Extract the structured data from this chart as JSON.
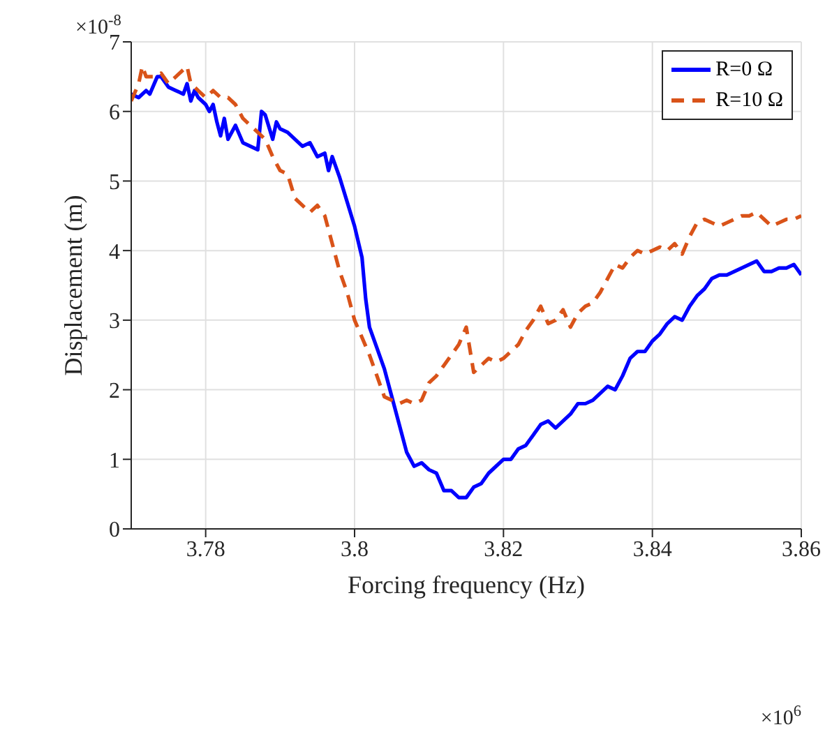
{
  "chart_data": {
    "type": "line",
    "xlabel": "Forcing frequency (Hz)",
    "ylabel": "Displacement (m)",
    "xlim": [
      3.77,
      3.86
    ],
    "xticks": [
      3.78,
      3.8,
      3.82,
      3.84,
      3.86
    ],
    "ylim": [
      0,
      7
    ],
    "yticks": [
      0,
      1,
      2,
      3,
      4,
      5,
      6,
      7
    ],
    "grid": true,
    "legend": "top right",
    "marker": "none",
    "annotations": [
      "×10$^{-8}$",
      "×10$^{6}$"
    ],
    "series": [
      {
        "name": "R=0 Ω",
        "color": "#0000ff",
        "line_style": "solid",
        "x": [
          3.77,
          3.771,
          3.772,
          3.7725,
          3.7735,
          3.774,
          3.775,
          3.776,
          3.777,
          3.7775,
          3.778,
          3.7785,
          3.779,
          3.78,
          3.7805,
          3.781,
          3.7815,
          3.782,
          3.7825,
          3.783,
          3.784,
          3.785,
          3.786,
          3.787,
          3.7875,
          3.788,
          3.789,
          3.7895,
          3.79,
          3.791,
          3.792,
          3.793,
          3.794,
          3.795,
          3.796,
          3.7965,
          3.797,
          3.798,
          3.799,
          3.8,
          3.801,
          3.8015,
          3.802,
          3.803,
          3.804,
          3.805,
          3.806,
          3.807,
          3.808,
          3.809,
          3.81,
          3.811,
          3.812,
          3.813,
          3.814,
          3.815,
          3.816,
          3.817,
          3.818,
          3.819,
          3.82,
          3.821,
          3.822,
          3.823,
          3.824,
          3.825,
          3.826,
          3.827,
          3.828,
          3.829,
          3.83,
          3.831,
          3.832,
          3.833,
          3.834,
          3.835,
          3.836,
          3.837,
          3.838,
          3.839,
          3.84,
          3.841,
          3.842,
          3.843,
          3.844,
          3.845,
          3.846,
          3.847,
          3.848,
          3.849,
          3.85,
          3.851,
          3.852,
          3.853,
          3.854,
          3.855,
          3.856,
          3.857,
          3.858,
          3.859,
          3.86
        ],
        "values": [
          6.25,
          6.2,
          6.3,
          6.25,
          6.5,
          6.5,
          6.35,
          6.3,
          6.25,
          6.4,
          6.15,
          6.3,
          6.2,
          6.1,
          6.0,
          6.1,
          5.85,
          5.65,
          5.9,
          5.6,
          5.8,
          5.55,
          5.5,
          5.45,
          6.0,
          5.95,
          5.6,
          5.85,
          5.75,
          5.7,
          5.6,
          5.5,
          5.55,
          5.35,
          5.4,
          5.15,
          5.35,
          5.05,
          4.7,
          4.35,
          3.9,
          3.3,
          2.9,
          2.6,
          2.3,
          1.9,
          1.5,
          1.1,
          0.9,
          0.95,
          0.85,
          0.8,
          0.55,
          0.55,
          0.45,
          0.45,
          0.6,
          0.65,
          0.8,
          0.9,
          1.0,
          1.0,
          1.15,
          1.2,
          1.35,
          1.5,
          1.55,
          1.45,
          1.55,
          1.65,
          1.8,
          1.8,
          1.85,
          1.95,
          2.05,
          2.0,
          2.2,
          2.45,
          2.55,
          2.55,
          2.7,
          2.8,
          2.95,
          3.05,
          3.0,
          3.2,
          3.35,
          3.45,
          3.6,
          3.65,
          3.65,
          3.7,
          3.75,
          3.8,
          3.85,
          3.7,
          3.7,
          3.75,
          3.75,
          3.8,
          3.65
        ]
      },
      {
        "name": "R=10 Ω",
        "color": "#d95319",
        "line_style": "dashed",
        "x": [
          3.77,
          3.771,
          3.7715,
          3.772,
          3.773,
          3.774,
          3.775,
          3.776,
          3.777,
          3.7775,
          3.778,
          3.779,
          3.78,
          3.781,
          3.782,
          3.783,
          3.784,
          3.785,
          3.786,
          3.787,
          3.788,
          3.789,
          3.79,
          3.791,
          3.792,
          3.793,
          3.794,
          3.795,
          3.796,
          3.797,
          3.798,
          3.799,
          3.8,
          3.801,
          3.802,
          3.803,
          3.804,
          3.805,
          3.806,
          3.807,
          3.808,
          3.809,
          3.81,
          3.811,
          3.812,
          3.813,
          3.814,
          3.815,
          3.816,
          3.817,
          3.818,
          3.819,
          3.82,
          3.821,
          3.822,
          3.823,
          3.824,
          3.825,
          3.826,
          3.827,
          3.828,
          3.829,
          3.83,
          3.831,
          3.832,
          3.833,
          3.834,
          3.835,
          3.836,
          3.837,
          3.838,
          3.839,
          3.84,
          3.841,
          3.842,
          3.843,
          3.844,
          3.845,
          3.846,
          3.847,
          3.848,
          3.849,
          3.85,
          3.851,
          3.852,
          3.853,
          3.854,
          3.855,
          3.856,
          3.857,
          3.858,
          3.859,
          3.86
        ],
        "values": [
          6.15,
          6.4,
          6.65,
          6.5,
          6.5,
          6.55,
          6.4,
          6.5,
          6.6,
          6.65,
          6.4,
          6.3,
          6.2,
          6.3,
          6.2,
          6.2,
          6.1,
          5.9,
          5.8,
          5.7,
          5.6,
          5.35,
          5.15,
          5.1,
          4.75,
          4.65,
          4.55,
          4.65,
          4.5,
          4.1,
          3.7,
          3.4,
          3.0,
          2.75,
          2.5,
          2.2,
          1.9,
          1.85,
          1.8,
          1.85,
          1.8,
          1.85,
          2.1,
          2.2,
          2.35,
          2.5,
          2.65,
          2.9,
          2.25,
          2.35,
          2.45,
          2.4,
          2.45,
          2.55,
          2.65,
          2.85,
          3.0,
          3.2,
          2.95,
          3.0,
          3.15,
          2.9,
          3.1,
          3.2,
          3.25,
          3.4,
          3.6,
          3.8,
          3.75,
          3.9,
          4.0,
          3.95,
          4.0,
          4.05,
          4.0,
          4.1,
          3.95,
          4.2,
          4.4,
          4.45,
          4.4,
          4.35,
          4.4,
          4.45,
          4.5,
          4.5,
          4.55,
          4.45,
          4.35,
          4.4,
          4.45,
          4.45,
          4.5
        ]
      }
    ]
  }
}
